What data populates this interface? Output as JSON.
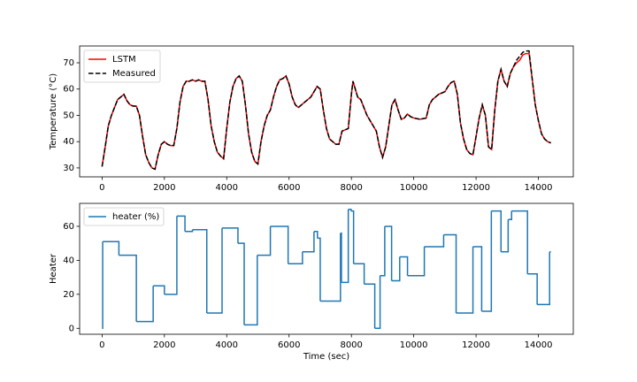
{
  "chart_data": [
    {
      "type": "line",
      "ylabel": "Temperature (°C)",
      "xlim": [
        -720,
        15120
      ],
      "ylim": [
        26.6,
        76.4
      ],
      "xticks": [
        0,
        2000,
        4000,
        6000,
        8000,
        10000,
        12000,
        14000
      ],
      "yticks": [
        30,
        40,
        50,
        60,
        70
      ],
      "legend": "upper left",
      "x": [
        0,
        100,
        200,
        300,
        400,
        500,
        600,
        700,
        800,
        900,
        1000,
        1100,
        1200,
        1300,
        1400,
        1500,
        1600,
        1700,
        1800,
        1900,
        2000,
        2100,
        2200,
        2300,
        2400,
        2500,
        2600,
        2700,
        2800,
        2900,
        3000,
        3100,
        3200,
        3300,
        3400,
        3500,
        3600,
        3700,
        3800,
        3900,
        4000,
        4100,
        4200,
        4300,
        4400,
        4500,
        4600,
        4700,
        4800,
        4900,
        5000,
        5100,
        5200,
        5300,
        5400,
        5500,
        5600,
        5700,
        5800,
        5900,
        6000,
        6100,
        6200,
        6300,
        6400,
        6500,
        6600,
        6700,
        6800,
        6900,
        7000,
        7100,
        7200,
        7300,
        7400,
        7500,
        7600,
        7700,
        7800,
        7900,
        8000,
        8050,
        8100,
        8200,
        8300,
        8400,
        8500,
        8600,
        8700,
        8800,
        8900,
        9000,
        9100,
        9200,
        9300,
        9400,
        9500,
        9600,
        9700,
        9800,
        9900,
        10000,
        10200,
        10400,
        10500,
        10600,
        10800,
        11000,
        11100,
        11200,
        11300,
        11400,
        11500,
        11600,
        11700,
        11800,
        11900,
        12000,
        12100,
        12200,
        12300,
        12400,
        12500,
        12600,
        12700,
        12800,
        12900,
        13000,
        13100,
        13200,
        13300,
        13400,
        13500,
        13600,
        13700,
        13800,
        13900,
        14000,
        14100,
        14200,
        14300,
        14400
      ],
      "series": [
        {
          "name": "LSTM",
          "color": "#ff0000",
          "linestyle": "solid",
          "values": [
            30.5,
            38,
            46,
            50,
            53,
            56,
            57,
            58,
            55.5,
            54,
            53.5,
            53.5,
            50,
            42,
            35,
            32,
            30,
            29.5,
            35,
            39,
            40,
            39,
            38.5,
            38.5,
            45,
            55,
            61,
            63,
            63,
            63.5,
            63,
            63.5,
            63,
            63,
            56,
            46,
            40,
            36,
            34.5,
            33.5,
            45,
            55,
            61,
            64,
            65,
            63,
            54,
            43,
            36,
            32.5,
            31.5,
            40,
            46,
            50,
            52,
            57,
            61,
            63.5,
            64,
            65,
            62,
            57,
            54,
            53,
            54,
            55,
            56,
            57,
            59,
            61,
            60,
            52,
            45,
            41,
            40,
            39,
            39,
            44,
            44.5,
            45,
            58,
            63,
            61,
            57,
            56,
            53,
            50,
            48,
            46,
            44,
            38,
            34,
            38,
            46,
            54,
            56,
            52,
            48.5,
            49,
            50.5,
            49.5,
            49,
            48.5,
            49,
            54,
            56,
            58,
            59,
            61,
            62.5,
            63,
            58,
            47,
            41,
            37,
            35.5,
            35,
            42,
            49,
            54,
            50,
            38,
            37,
            52,
            63,
            67.5,
            63,
            61,
            66,
            68.5,
            70,
            71,
            73,
            73.5,
            73.5,
            64,
            54,
            48,
            43,
            41,
            40,
            39.5
          ]
        },
        {
          "name": "Measured",
          "color": "#000000",
          "linestyle": "dashed",
          "values": [
            30.5,
            38,
            46,
            50,
            53,
            56,
            57,
            58,
            55.5,
            54,
            53.5,
            53.5,
            50,
            42,
            35,
            32,
            30,
            29.5,
            35,
            39,
            40,
            39,
            38.5,
            38.5,
            45,
            55,
            61,
            63,
            63,
            63.5,
            63,
            63.5,
            63,
            63,
            56,
            46,
            40,
            36,
            34.5,
            33.5,
            45,
            55,
            61,
            64,
            65,
            63,
            54,
            43,
            36,
            32.5,
            31.5,
            40,
            46,
            50,
            52,
            57,
            61,
            63.5,
            64,
            65,
            62,
            57,
            54,
            53,
            54,
            55,
            56,
            57,
            59,
            61,
            60,
            52,
            45,
            41,
            40,
            39,
            39,
            44,
            44.5,
            45,
            58,
            63,
            61,
            57,
            56,
            53,
            50,
            48,
            46,
            44,
            38,
            34,
            38,
            46,
            54,
            56,
            52,
            48.5,
            49,
            50.5,
            49.5,
            49,
            48.5,
            49,
            54,
            56,
            58,
            59,
            61,
            62.5,
            63,
            58,
            47,
            41,
            37,
            35.5,
            35,
            42,
            49,
            54,
            50,
            38,
            37,
            52,
            63,
            67.5,
            63,
            61,
            66,
            68.5,
            71,
            72.5,
            74,
            74.5,
            74.5,
            64,
            54,
            48,
            43,
            41,
            40,
            39.5
          ]
        }
      ]
    },
    {
      "type": "step",
      "xlabel": "Time (sec)",
      "ylabel": "Heater",
      "xlim": [
        -720,
        15120
      ],
      "ylim": [
        -3.5,
        73.5
      ],
      "xticks": [
        0,
        2000,
        4000,
        6000,
        8000,
        10000,
        12000,
        14000
      ],
      "yticks": [
        0,
        20,
        40,
        60
      ],
      "legend": "upper left",
      "x": [
        0,
        20,
        540,
        1100,
        1640,
        2000,
        2400,
        2660,
        2900,
        3360,
        3850,
        4360,
        4560,
        4980,
        5400,
        5970,
        6430,
        6800,
        6910,
        7000,
        7650,
        7680,
        7900,
        7990,
        8070,
        8410,
        8750,
        8920,
        9070,
        9290,
        9550,
        9800,
        10340,
        10960,
        11360,
        11900,
        12180,
        12490,
        12800,
        13030,
        13140,
        13650,
        13960,
        14360,
        14400
      ],
      "series": [
        {
          "name": "heater (%)",
          "color": "#1f77b4",
          "values": [
            0,
            51,
            43,
            4,
            25,
            20,
            66,
            57,
            58,
            9,
            59,
            50,
            2,
            43,
            60,
            38,
            45,
            57,
            53,
            16,
            56,
            27,
            70,
            69,
            38,
            26,
            0,
            31,
            60,
            28,
            42,
            31,
            48,
            55,
            9,
            48,
            10,
            69,
            45,
            64,
            69,
            32,
            14,
            45,
            45
          ]
        }
      ]
    }
  ]
}
